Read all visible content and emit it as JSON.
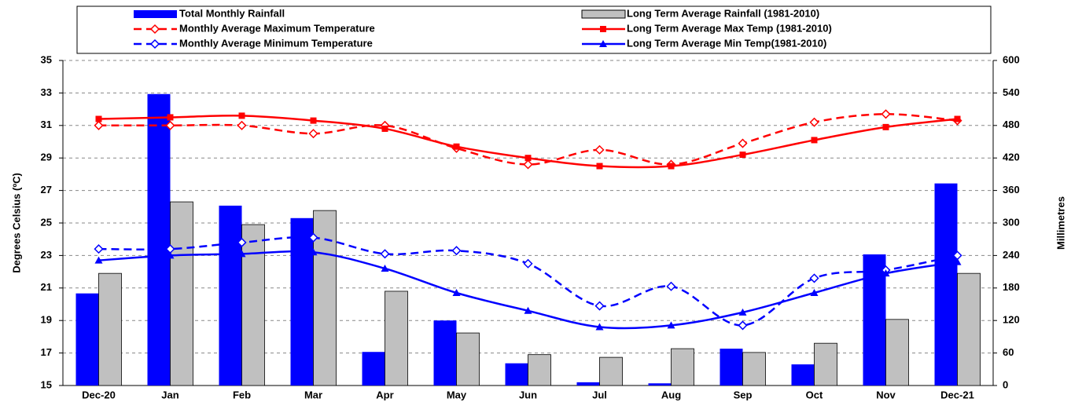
{
  "chart_data": {
    "type": "bar",
    "categories": [
      "Dec-20",
      "Jan",
      "Feb",
      "Mar",
      "Apr",
      "May",
      "Jun",
      "Jul",
      "Aug",
      "Sep",
      "Oct",
      "Nov",
      "Dec-21"
    ],
    "ylabel": "Degrees Celsius (ºC)",
    "y2label": "Millimetres",
    "ylim": [
      15,
      35
    ],
    "yticks": [
      15,
      17,
      19,
      21,
      23,
      25,
      27,
      29,
      31,
      33,
      35
    ],
    "y2lim": [
      0,
      600
    ],
    "y2ticks": [
      0,
      60,
      120,
      180,
      240,
      300,
      360,
      420,
      480,
      540,
      600
    ],
    "grid": true,
    "series": [
      {
        "name": "Total Monthly Rainfall",
        "type": "bar",
        "axis": "y2",
        "color": "#0000ff",
        "values": [
          170,
          538,
          332,
          309,
          62,
          120,
          41,
          6,
          4,
          68,
          39,
          242,
          373
        ]
      },
      {
        "name": "Long Term Average Rainfall (1981-2010)",
        "type": "bar",
        "axis": "y2",
        "color": "#c0c0c0",
        "values": [
          207,
          339,
          297,
          323,
          174,
          97,
          57,
          52,
          68,
          61,
          78,
          122,
          207
        ]
      },
      {
        "name": "Monthly Average Maximum Temperature",
        "type": "line",
        "dashed": true,
        "marker": "diamond-open",
        "color": "#ff0000",
        "values": [
          31.0,
          31.0,
          31.0,
          30.5,
          31.0,
          29.6,
          28.6,
          29.5,
          28.6,
          29.9,
          31.2,
          31.7,
          31.3
        ]
      },
      {
        "name": "Long Term Average Max Temp (1981-2010)",
        "type": "line",
        "dashed": false,
        "marker": "square",
        "color": "#ff0000",
        "values": [
          31.4,
          31.5,
          31.6,
          31.3,
          30.8,
          29.7,
          29.0,
          28.5,
          28.5,
          29.2,
          30.1,
          30.9,
          31.4
        ]
      },
      {
        "name": "Monthly Average Minimum Temperature",
        "type": "line",
        "dashed": true,
        "marker": "diamond",
        "color": "#0000ff",
        "values": [
          23.4,
          23.4,
          23.8,
          24.1,
          23.1,
          23.3,
          22.5,
          19.9,
          21.1,
          18.7,
          21.6,
          22.1,
          23.0
        ]
      },
      {
        "name": "Long Term Average Min Temp(1981-2010)",
        "type": "line",
        "dashed": false,
        "marker": "triangle",
        "color": "#0000ff",
        "values": [
          22.7,
          23.0,
          23.1,
          23.2,
          22.2,
          20.7,
          19.6,
          18.6,
          18.7,
          19.5,
          20.7,
          21.9,
          22.6
        ]
      }
    ]
  }
}
